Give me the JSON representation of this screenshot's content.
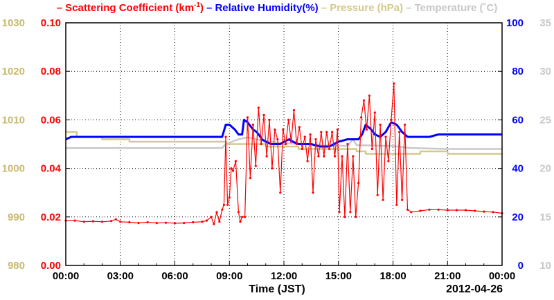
{
  "chart_data": {
    "type": "line",
    "legend": [
      {
        "prefix": "– ",
        "text": "Scattering Coefficient (km",
        "sup": "-1",
        "suffix": ")",
        "color": "#ff0000"
      },
      {
        "prefix": "– ",
        "text": "Relative Humidity(%)",
        "sup": "",
        "suffix": "",
        "color": "#0000ff"
      },
      {
        "prefix": "– ",
        "text": "Pressure (hPa)",
        "sup": "",
        "suffix": "",
        "color": "#d4c98a"
      },
      {
        "prefix": "– ",
        "text": "Temperature (˚C)",
        "sup": "",
        "suffix": "",
        "color": "#c8c8c8"
      }
    ],
    "xlabel": "Time (JST)",
    "date": "2012-04-26",
    "x_ticks": [
      "00:00",
      "03:00",
      "06:00",
      "09:00",
      "12:00",
      "15:00",
      "18:00",
      "21:00",
      "00:00"
    ],
    "xlim_hours": [
      0,
      24
    ],
    "grid": true,
    "axes": {
      "left_outer": {
        "label": "Pressure (hPa)",
        "color": "#c8b870",
        "ylim": [
          980,
          1030
        ],
        "ticks": [
          980,
          990,
          1000,
          1010,
          1020,
          1030
        ]
      },
      "left_inner": {
        "label": "Scattering Coefficient",
        "color": "#ff0000",
        "ylim": [
          0,
          0.1
        ],
        "ticks": [
          "0.00",
          "0.02",
          "0.04",
          "0.06",
          "0.08",
          "0.10"
        ]
      },
      "right_inner": {
        "label": "Relative Humidity",
        "color": "#0000ff",
        "ylim": [
          0,
          100
        ],
        "ticks": [
          0,
          20,
          40,
          60,
          80,
          100
        ]
      },
      "right_outer": {
        "label": "Temperature",
        "color": "#c8c8c8",
        "ylim": [
          10,
          35
        ],
        "ticks": [
          10,
          15,
          20,
          25,
          30,
          35
        ]
      }
    },
    "series": [
      {
        "name": "Scattering Coefficient",
        "axis": "left_inner",
        "color": "#ff0000",
        "x": [
          0,
          0.5,
          1,
          1.5,
          2,
          2.5,
          2.75,
          3,
          3.5,
          4,
          4.5,
          5,
          5.5,
          6,
          6.5,
          7,
          7.5,
          7.75,
          8,
          8.15,
          8.3,
          8.45,
          8.6,
          8.7,
          8.8,
          8.9,
          9.0,
          9.1,
          9.2,
          9.35,
          9.5,
          9.6,
          9.7,
          9.85,
          10.0,
          10.15,
          10.3,
          10.45,
          10.6,
          10.75,
          10.9,
          11.05,
          11.2,
          11.35,
          11.5,
          11.65,
          11.8,
          11.95,
          12.1,
          12.25,
          12.4,
          12.55,
          12.7,
          12.85,
          13.0,
          13.15,
          13.3,
          13.45,
          13.6,
          13.75,
          13.9,
          14.05,
          14.2,
          14.35,
          14.5,
          14.65,
          14.8,
          14.95,
          15.05,
          15.2,
          15.35,
          15.5,
          15.65,
          15.8,
          15.95,
          16.1,
          16.25,
          16.4,
          16.55,
          16.7,
          16.85,
          17.0,
          17.15,
          17.3,
          17.45,
          17.6,
          17.75,
          17.9,
          18.05,
          18.2,
          18.35,
          18.5,
          18.65,
          18.8,
          19.0,
          19.5,
          20,
          20.5,
          21,
          21.5,
          22,
          22.5,
          23,
          23.5,
          24
        ],
        "values": [
          0.0185,
          0.0185,
          0.018,
          0.0182,
          0.018,
          0.0183,
          0.019,
          0.018,
          0.0178,
          0.0175,
          0.0178,
          0.0175,
          0.0176,
          0.0174,
          0.0175,
          0.0178,
          0.018,
          0.0185,
          0.02,
          0.017,
          0.022,
          0.018,
          0.023,
          0.025,
          0.053,
          0.025,
          0.028,
          0.04,
          0.039,
          0.043,
          0.022,
          0.018,
          0.02,
          0.02,
          0.061,
          0.036,
          0.058,
          0.041,
          0.065,
          0.05,
          0.062,
          0.045,
          0.06,
          0.04,
          0.056,
          0.052,
          0.03,
          0.056,
          0.05,
          0.06,
          0.051,
          0.064,
          0.05,
          0.057,
          0.048,
          0.053,
          0.043,
          0.054,
          0.03,
          0.052,
          0.045,
          0.055,
          0.045,
          0.055,
          0.048,
          0.055,
          0.045,
          0.056,
          0.022,
          0.045,
          0.02,
          0.05,
          0.022,
          0.045,
          0.02,
          0.034,
          0.061,
          0.068,
          0.056,
          0.07,
          0.048,
          0.063,
          0.029,
          0.058,
          0.027,
          0.053,
          0.043,
          0.06,
          0.075,
          0.025,
          0.055,
          0.027,
          0.058,
          0.023,
          0.022,
          0.0225,
          0.023,
          0.023,
          0.0228,
          0.0228,
          0.0228,
          0.0225,
          0.0222,
          0.022,
          0.0215
        ]
      },
      {
        "name": "Relative Humidity",
        "axis": "right_inner",
        "color": "#0000ff",
        "x": [
          0,
          0.3,
          1,
          2,
          3,
          4,
          5,
          6,
          7,
          8,
          8.6,
          8.8,
          9.0,
          9.3,
          9.5,
          9.7,
          9.8,
          10.0,
          10.3,
          10.5,
          10.8,
          11.0,
          11.3,
          11.5,
          11.8,
          12.0,
          12.3,
          12.5,
          12.8,
          13.0,
          13.5,
          14.0,
          14.5,
          15.0,
          15.5,
          15.9,
          16.1,
          16.3,
          16.5,
          16.8,
          17.0,
          17.3,
          17.6,
          17.9,
          18.2,
          18.5,
          18.8,
          19.0,
          19.5,
          20.0,
          20.5,
          21,
          22,
          23,
          24
        ],
        "values": [
          52,
          53,
          53,
          53,
          53,
          53,
          53,
          53,
          53,
          53,
          53,
          58,
          58,
          56,
          54,
          54,
          60,
          59,
          56,
          55,
          52,
          51,
          50,
          50,
          50,
          51,
          52,
          51,
          50,
          50,
          50,
          49,
          49,
          51,
          52,
          52,
          52,
          54,
          58,
          56,
          54,
          53,
          55,
          59,
          58,
          55,
          53,
          53,
          53,
          53,
          54,
          54,
          54,
          54,
          54
        ]
      },
      {
        "name": "Pressure",
        "axis": "left_outer",
        "color": "#d4c98a",
        "x": [
          0,
          0.6,
          0.6,
          2.0,
          2.0,
          3.5,
          3.5,
          8.8,
          8.8,
          11.0,
          11.0,
          12.8,
          12.8,
          16.0,
          16.0,
          16.5,
          16.5,
          19.5,
          19.5,
          21.0,
          21.0,
          24.0
        ],
        "values": [
          1007.5,
          1007.5,
          1006.5,
          1006.5,
          1006.0,
          1006.0,
          1005.5,
          1005.5,
          1005.0,
          1005.0,
          1004.5,
          1004.5,
          1004.0,
          1004.0,
          1003.5,
          1003.5,
          1003.0,
          1003.0,
          1003.5,
          1003.5,
          1003.0,
          1003.0
        ]
      },
      {
        "name": "Temperature",
        "axis": "right_outer",
        "color": "#c8c8c8",
        "x": [
          0,
          8.6,
          8.8,
          9.5,
          10.0,
          11.0,
          12.0,
          14.0,
          15.5,
          15.8,
          16.0,
          18.0,
          19.0,
          21.0,
          22.5,
          24.0
        ],
        "values": [
          22.1,
          22.1,
          22.5,
          23.0,
          23.2,
          22.8,
          22.6,
          22.4,
          22.3,
          23.0,
          22.4,
          22.3,
          22.1,
          22.0,
          22.0,
          22.0
        ]
      }
    ]
  }
}
